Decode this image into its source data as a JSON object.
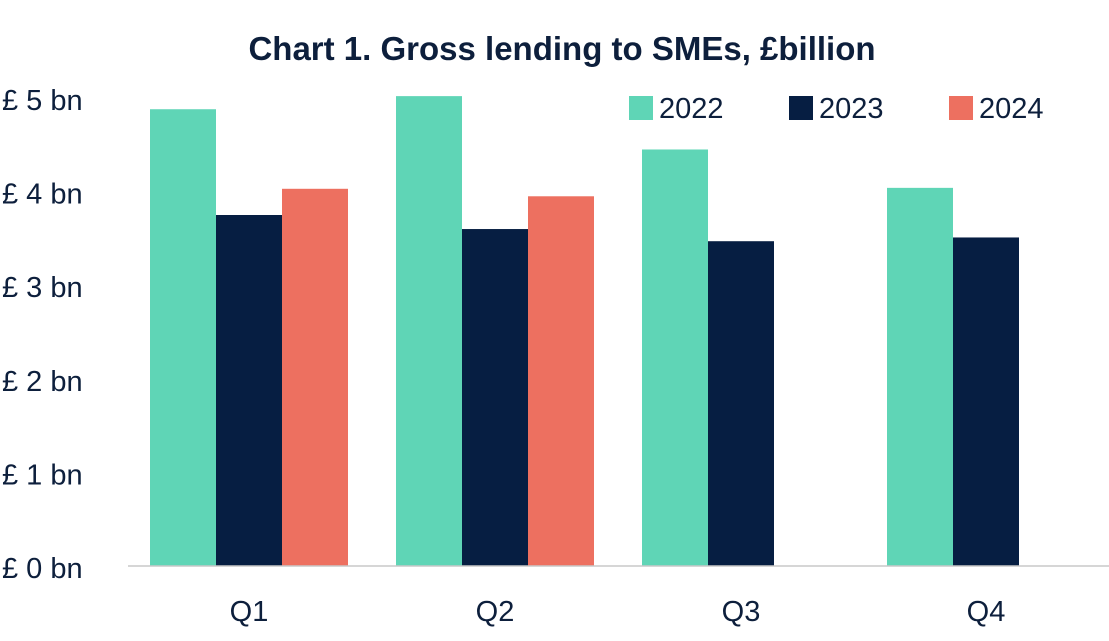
{
  "chart_data": {
    "type": "bar",
    "title": "Chart 1. Gross lending to SMEs, £billion",
    "categories": [
      "Q1",
      "Q2",
      "Q3",
      "Q4"
    ],
    "series": [
      {
        "name": "2022",
        "values": [
          4.88,
          5.02,
          4.45,
          4.04
        ],
        "color": "#5fd5b6"
      },
      {
        "name": "2023",
        "values": [
          3.75,
          3.6,
          3.47,
          3.51
        ],
        "color": "#061e42"
      },
      {
        "name": "2024",
        "values": [
          4.03,
          3.95,
          null,
          null
        ],
        "color": "#ed7060"
      }
    ],
    "ylim": [
      0,
      5
    ],
    "yticks": [
      0,
      1,
      2,
      3,
      4,
      5
    ],
    "ytick_labels": [
      "£ 0 bn",
      "£ 1 bn",
      "£ 2 bn",
      "£ 3 bn",
      "£ 4 bn",
      "£ 5 bn"
    ],
    "xlabel": "",
    "ylabel": "",
    "grid": false,
    "legend_position": "top-right",
    "colors": {
      "text": "#0d1f3c",
      "axis": "#c8c8c8"
    }
  }
}
